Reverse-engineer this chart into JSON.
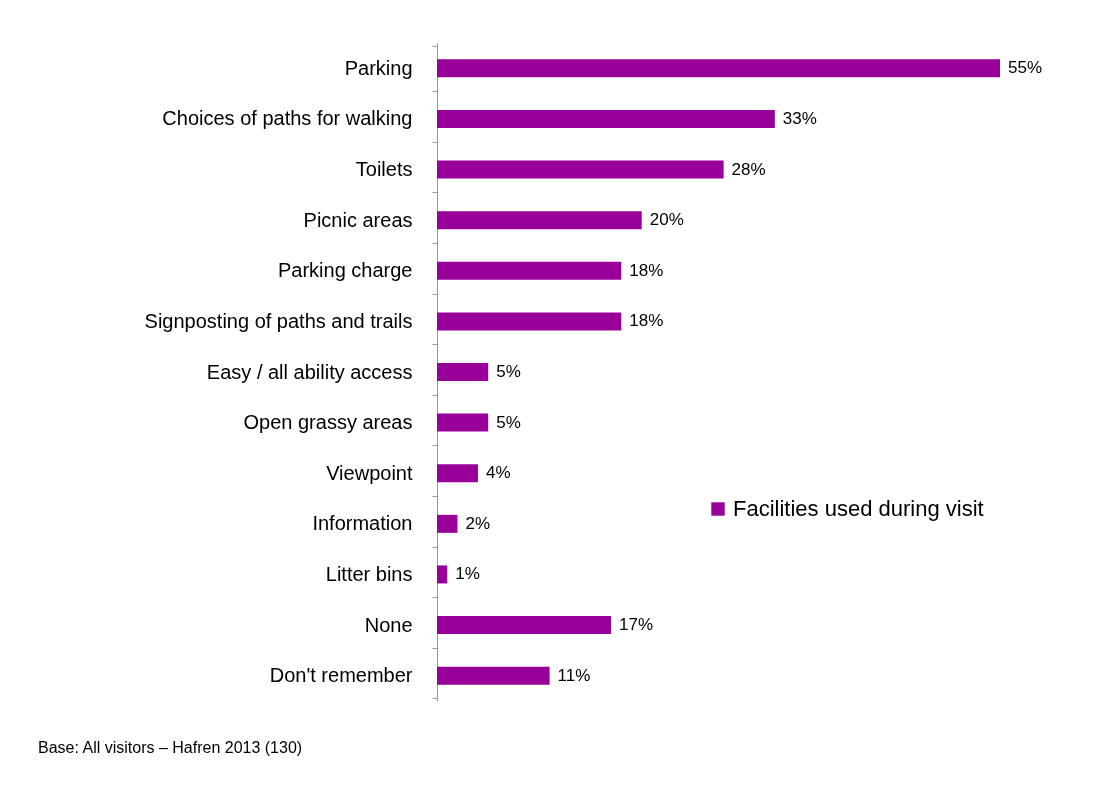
{
  "chart_data": {
    "type": "bar",
    "orientation": "horizontal",
    "categories": [
      "Parking",
      "Choices of paths for walking",
      "Toilets",
      "Picnic areas",
      "Parking charge",
      "Signposting of paths and trails",
      "Easy / all ability access",
      "Open grassy areas",
      "Viewpoint",
      "Information",
      "Litter bins",
      "None",
      "Don't remember"
    ],
    "series": [
      {
        "name": "Facilities used during visit",
        "color": "#990099",
        "values": [
          55,
          33,
          28,
          20,
          18,
          18,
          5,
          5,
          4,
          2,
          1,
          17,
          11
        ],
        "value_labels": [
          "55%",
          "33%",
          "28%",
          "20%",
          "18%",
          "18%",
          "5%",
          "5%",
          "4%",
          "2%",
          "1%",
          "17%",
          "11%"
        ]
      }
    ],
    "legend": "right",
    "annotations": [
      "Base: All visitors – Hafren 2013 (130)"
    ]
  }
}
